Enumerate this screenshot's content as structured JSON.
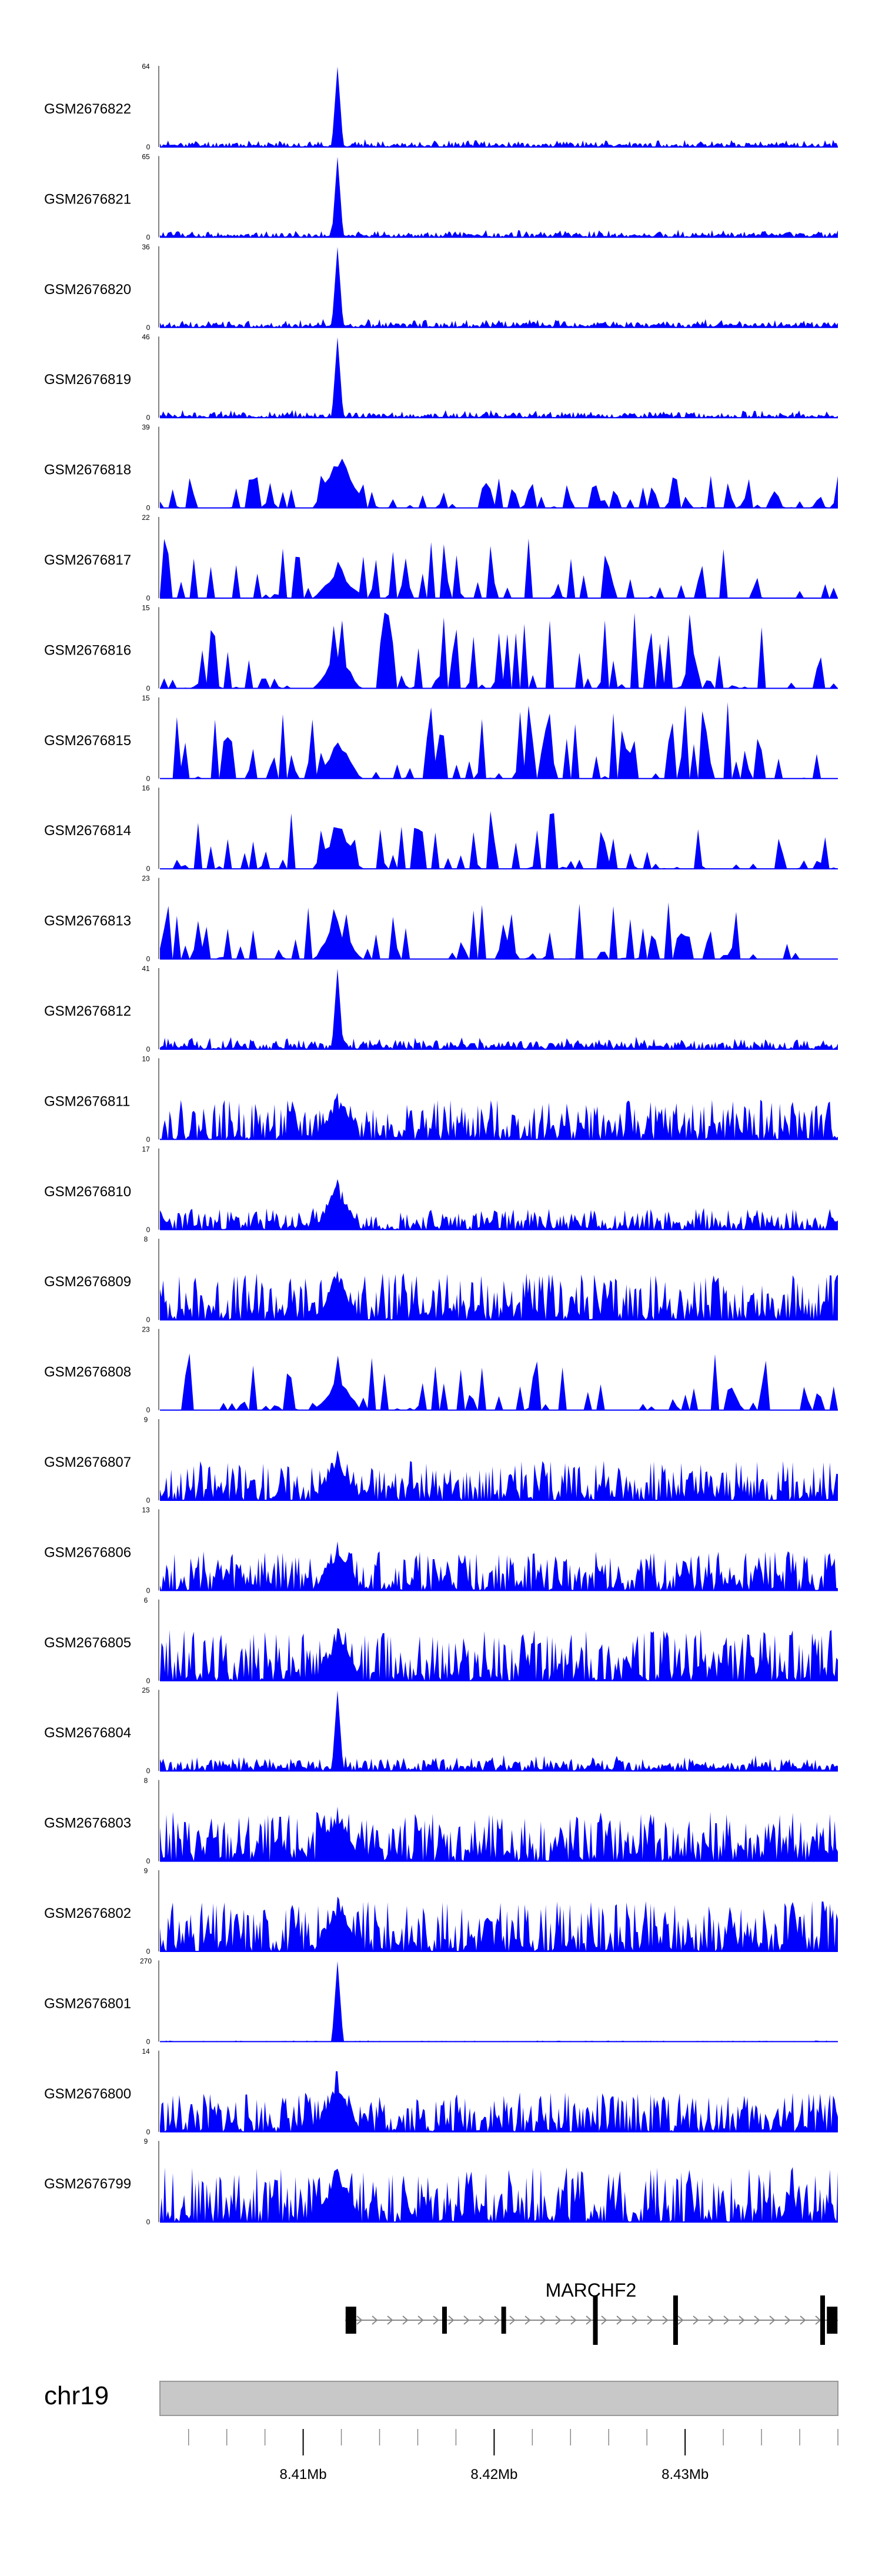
{
  "chart_data": {
    "type": "area",
    "title": "",
    "signal_color": "#0000ff",
    "genome": {
      "chromosome": "chr19",
      "xlim_mb": [
        8.4025,
        8.438
      ],
      "major_ticks": [
        {
          "value": 8.41,
          "label": "8.41Mb"
        },
        {
          "value": 8.42,
          "label": "8.42Mb"
        },
        {
          "value": 8.43,
          "label": "8.43Mb"
        }
      ],
      "minor_tick_step_mb": 0.002
    },
    "gene": {
      "name": "MARCHF2",
      "strand": "+",
      "start_mb": 8.4122,
      "end_mb": 8.438,
      "exons_mb": [
        8.4125,
        8.4174,
        8.4205,
        8.4253,
        8.4295,
        8.4372,
        8.4377
      ]
    },
    "tracks": [
      {
        "name": "GSM2676822",
        "ymax": 64,
        "ymin": 0,
        "peak": 64,
        "style": "sharp",
        "fill": 0.8,
        "seed": 11,
        "base": 0.07
      },
      {
        "name": "GSM2676821",
        "ymax": 65,
        "ymin": 0,
        "peak": 65,
        "style": "sharp",
        "fill": 0.8,
        "seed": 12,
        "base": 0.07
      },
      {
        "name": "GSM2676820",
        "ymax": 36,
        "ymin": 0,
        "peak": 36,
        "style": "sharp",
        "fill": 0.85,
        "seed": 13,
        "base": 0.08
      },
      {
        "name": "GSM2676819",
        "ymax": 46,
        "ymin": 0,
        "peak": 46,
        "style": "sharp",
        "fill": 0.85,
        "seed": 14,
        "base": 0.07
      },
      {
        "name": "GSM2676818",
        "ymax": 39,
        "ymin": 0,
        "peak": 39,
        "style": "spiky",
        "fill": 0.6,
        "seed": 15,
        "base": 0.25
      },
      {
        "name": "GSM2676817",
        "ymax": 22,
        "ymin": 0,
        "peak": 12,
        "style": "spiky",
        "fill": 0.5,
        "seed": 16,
        "base": 0.5
      },
      {
        "name": "GSM2676816",
        "ymax": 15,
        "ymin": 0,
        "peak": 9,
        "style": "spiky",
        "fill": 0.5,
        "seed": 17,
        "base": 0.6
      },
      {
        "name": "GSM2676815",
        "ymax": 15,
        "ymin": 0,
        "peak": 9,
        "style": "spiky",
        "fill": 0.5,
        "seed": 18,
        "base": 0.6
      },
      {
        "name": "GSM2676814",
        "ymax": 16,
        "ymin": 0,
        "peak": 12,
        "style": "spiky",
        "fill": 0.45,
        "seed": 19,
        "base": 0.45
      },
      {
        "name": "GSM2676813",
        "ymax": 23,
        "ymin": 0,
        "peak": 14,
        "style": "spiky",
        "fill": 0.45,
        "seed": 20,
        "base": 0.45
      },
      {
        "name": "GSM2676812",
        "ymax": 41,
        "ymin": 0,
        "peak": 41,
        "style": "sharp",
        "fill": 0.8,
        "seed": 21,
        "base": 0.12
      },
      {
        "name": "GSM2676811",
        "ymax": 10,
        "ymin": 0,
        "peak": 7,
        "style": "dense",
        "fill": 1.0,
        "seed": 22,
        "base": 0.5
      },
      {
        "name": "GSM2676810",
        "ymax": 17,
        "ymin": 0,
        "peak": 13,
        "style": "dense",
        "fill": 1.0,
        "seed": 23,
        "base": 0.25
      },
      {
        "name": "GSM2676809",
        "ymax": 8,
        "ymin": 0,
        "peak": 6,
        "style": "dense",
        "fill": 1.0,
        "seed": 24,
        "base": 0.55
      },
      {
        "name": "GSM2676808",
        "ymax": 23,
        "ymin": 0,
        "peak": 12,
        "style": "spiky",
        "fill": 0.45,
        "seed": 25,
        "base": 0.45
      },
      {
        "name": "GSM2676807",
        "ymax": 9,
        "ymin": 0,
        "peak": 7,
        "style": "dense",
        "fill": 1.0,
        "seed": 26,
        "base": 0.45
      },
      {
        "name": "GSM2676806",
        "ymax": 13,
        "ymin": 0,
        "peak": 10,
        "style": "dense",
        "fill": 1.0,
        "seed": 27,
        "base": 0.45
      },
      {
        "name": "GSM2676805",
        "ymax": 6,
        "ymin": 0,
        "peak": 5,
        "style": "dense",
        "fill": 0.9,
        "seed": 28,
        "base": 0.55
      },
      {
        "name": "GSM2676804",
        "ymax": 25,
        "ymin": 0,
        "peak": 25,
        "style": "sharp",
        "fill": 1.0,
        "seed": 29,
        "base": 0.15
      },
      {
        "name": "GSM2676803",
        "ymax": 8,
        "ymin": 0,
        "peak": 7,
        "style": "dense",
        "fill": 1.0,
        "seed": 30,
        "base": 0.5
      },
      {
        "name": "GSM2676802",
        "ymax": 9,
        "ymin": 0,
        "peak": 8,
        "style": "dense",
        "fill": 1.0,
        "seed": 31,
        "base": 0.5
      },
      {
        "name": "GSM2676801",
        "ymax": 270,
        "ymin": 0,
        "peak": 270,
        "style": "sharp",
        "fill": 0.9,
        "seed": 32,
        "base": 0.01
      },
      {
        "name": "GSM2676800",
        "ymax": 14,
        "ymin": 0,
        "peak": 14,
        "style": "dense",
        "fill": 1.0,
        "seed": 33,
        "base": 0.35
      },
      {
        "name": "GSM2676799",
        "ymax": 9,
        "ymin": 0,
        "peak": 8,
        "style": "dense",
        "fill": 1.0,
        "seed": 34,
        "base": 0.55
      }
    ],
    "common_peak_mb": 8.4118
  }
}
